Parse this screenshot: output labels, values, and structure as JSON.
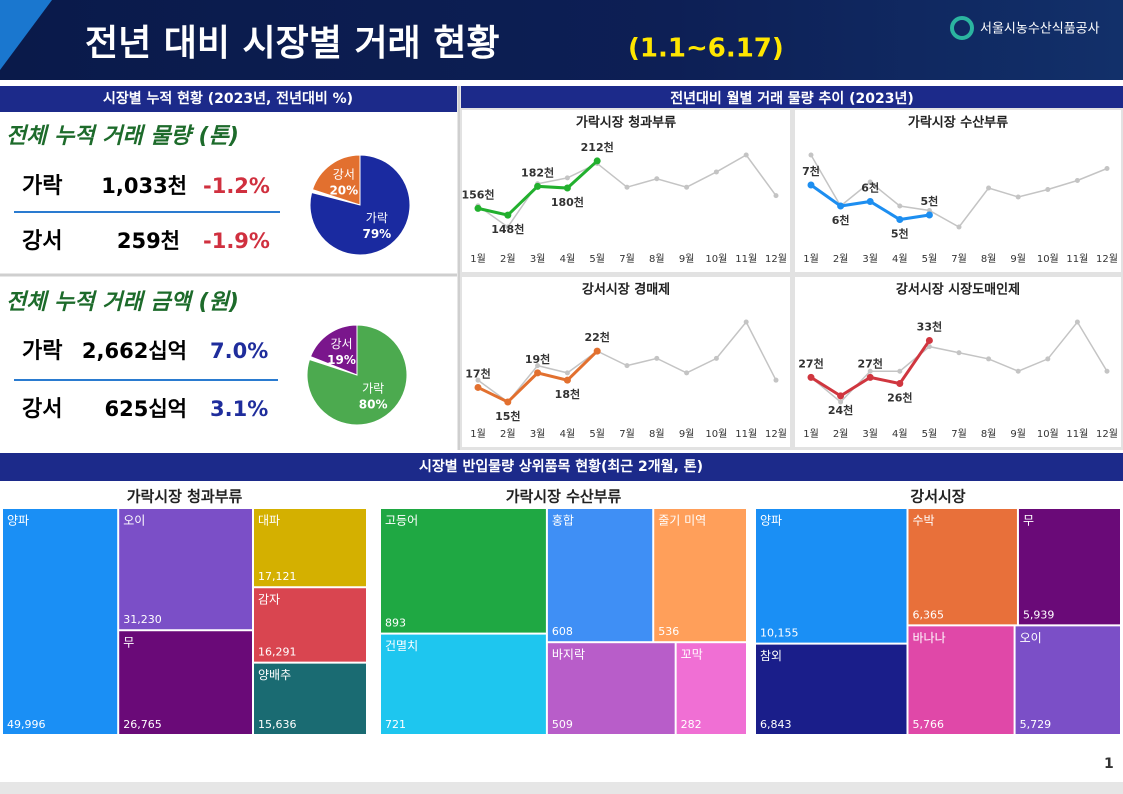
{
  "header": {
    "title": "전년 대비 시장별 거래 현황",
    "subtitle": "(1.1~6.17)",
    "org": "서울시농수산식품공사"
  },
  "sections": {
    "left": "시장별 누적 현황 (2023년, 전년대비 %)",
    "right": "전년대비 월별 거래 물량 추이 (2023년)",
    "bottom": "시장별 반입물량 상위품목 현황(최근 2개월, 톤)"
  },
  "kpi": [
    {
      "title": "전체 누적 거래 물량 (톤)",
      "rows": [
        {
          "market": "가락",
          "value": "1,033천",
          "change": "-1.2%",
          "color": "#d0303f"
        },
        {
          "market": "강서",
          "value": "259천",
          "change": "-1.9%",
          "color": "#d0303f"
        }
      ]
    },
    {
      "title": "전체 누적 거래 금액 (원)",
      "rows": [
        {
          "market": "가락",
          "value": "2,662십억",
          "change": "7.0%",
          "color": "#1f2d9c"
        },
        {
          "market": "강서",
          "value": "625십억",
          "change": "3.1%",
          "color": "#1f2d9c"
        }
      ]
    }
  ],
  "page_number": "1",
  "chart_data": [
    {
      "type": "pie",
      "categories": [
        "강서",
        "가락"
      ],
      "values": [
        20,
        79
      ],
      "value_labels": [
        "20%",
        "79%"
      ],
      "colors": [
        "#e2702f",
        "#1a2aa0"
      ]
    },
    {
      "type": "pie",
      "categories": [
        "강서",
        "가락"
      ],
      "values": [
        19,
        80
      ],
      "value_labels": [
        "19%",
        "80%"
      ],
      "colors": [
        "#7a168c",
        "#4caa4f"
      ]
    },
    {
      "type": "line",
      "title": "가락시장 청과부류",
      "categories": [
        "1월",
        "2월",
        "3월",
        "4월",
        "5월",
        "7월",
        "8월",
        "9월",
        "10월",
        "11월",
        "12월"
      ],
      "series": [
        {
          "color": "#c4c4c4",
          "values": [
            159,
            134,
            185,
            192,
            209,
            181,
            191,
            181,
            199,
            219,
            171
          ]
        },
        {
          "color": "#22b02e",
          "values": [
            156,
            148,
            182,
            180,
            212,
            null,
            null,
            null,
            null,
            null,
            null
          ],
          "value_labels": [
            "156천",
            "148천",
            "182천",
            "180천",
            "212천",
            null,
            null,
            null,
            null,
            null,
            null
          ]
        }
      ]
    },
    {
      "type": "line",
      "title": "가락시장 수산부류",
      "categories": [
        "1월",
        "2월",
        "3월",
        "4월",
        "5월",
        "7월",
        "8월",
        "9월",
        "10월",
        "11월",
        "12월"
      ],
      "series": [
        {
          "color": "#c4c4c4",
          "values": [
            9.3,
            5.9,
            7.5,
            5.9,
            5.6,
            4.5,
            7.1,
            6.5,
            7.0,
            7.6,
            8.4
          ]
        },
        {
          "color": "#1d8ef0",
          "values": [
            7.3,
            5.9,
            6.2,
            5.0,
            5.3,
            null,
            null,
            null,
            null,
            null,
            null
          ],
          "value_labels": [
            "7천",
            "6천",
            "6천",
            "5천",
            "5천",
            null,
            null,
            null,
            null,
            null,
            null
          ]
        }
      ]
    },
    {
      "type": "line",
      "title": "강서시장 경매제",
      "categories": [
        "1월",
        "2월",
        "3월",
        "4월",
        "5월",
        "7월",
        "8월",
        "9월",
        "10월",
        "11월",
        "12월"
      ],
      "series": [
        {
          "color": "#c4c4c4",
          "values": [
            18,
            15,
            20,
            19,
            22,
            20,
            21,
            19,
            21,
            26,
            18
          ]
        },
        {
          "color": "#e2702f",
          "values": [
            17,
            15,
            19,
            18,
            22,
            null,
            null,
            null,
            null,
            null,
            null
          ],
          "value_labels": [
            "17천",
            "15천",
            "19천",
            "18천",
            "22천",
            null,
            null,
            null,
            null,
            null,
            null
          ]
        }
      ]
    },
    {
      "type": "line",
      "title": "강서시장 시장도매인제",
      "categories": [
        "1월",
        "2월",
        "3월",
        "4월",
        "5월",
        "7월",
        "8월",
        "9월",
        "10월",
        "11월",
        "12월"
      ],
      "series": [
        {
          "color": "#c4c4c4",
          "values": [
            27,
            23,
            28,
            28,
            32,
            31,
            30,
            28,
            30,
            36,
            28
          ]
        },
        {
          "color": "#d0363f",
          "values": [
            27,
            24,
            27,
            26,
            33,
            null,
            null,
            null,
            null,
            null,
            null
          ],
          "value_labels": [
            "27천",
            "24천",
            "27천",
            "26천",
            "33천",
            null,
            null,
            null,
            null,
            null,
            null
          ]
        }
      ]
    },
    {
      "type": "treemap",
      "title": "가락시장 청과부류",
      "labels": [
        "양파",
        "오이",
        "무",
        "대파",
        "감자",
        "양배추"
      ],
      "values": [
        49996,
        31230,
        26765,
        17121,
        16291,
        15636
      ],
      "value_labels": [
        "49,996",
        "31,230",
        "26,765",
        "17,121",
        "16,291",
        "15,636"
      ],
      "colors": [
        "#1a8ff5",
        "#7b4fc7",
        "#6a0a78",
        "#d4b000",
        "#d94550",
        "#1a6b72"
      ]
    },
    {
      "type": "treemap",
      "title": "가락시장 수산부류",
      "labels": [
        "고등어",
        "건멸치",
        "홍합",
        "줄기 미역",
        "바지락",
        "꼬막"
      ],
      "values": [
        893,
        721,
        608,
        536,
        509,
        282
      ],
      "colors": [
        "#1fa843",
        "#1ec6ef",
        "#3f8ff5",
        "#ff9f5a",
        "#b85dc9",
        "#f06fd4"
      ]
    },
    {
      "type": "treemap",
      "title": "강서시장",
      "labels": [
        "양파",
        "참외",
        "수박",
        "무",
        "바나나",
        "오이"
      ],
      "values": [
        10155,
        6843,
        6365,
        5939,
        5766,
        5729
      ],
      "value_labels": [
        "10,155",
        "6,843",
        "6,365",
        "5,939",
        "5,766",
        "5,729"
      ],
      "colors": [
        "#1a8ff5",
        "#1a1e8a",
        "#e8703a",
        "#6a0a78",
        "#e048a8",
        "#7b4fc7"
      ]
    }
  ]
}
